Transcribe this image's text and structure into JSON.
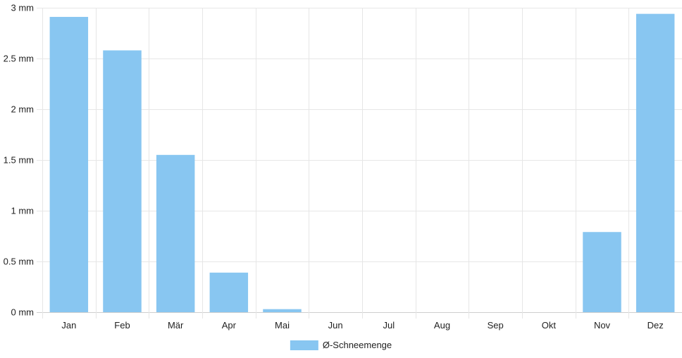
{
  "chart_data": {
    "type": "bar",
    "categories": [
      "Jan",
      "Feb",
      "Mär",
      "Apr",
      "Mai",
      "Jun",
      "Jul",
      "Aug",
      "Sep",
      "Okt",
      "Nov",
      "Dez"
    ],
    "series": [
      {
        "name": "Ø-Schneemenge",
        "values": [
          2.91,
          2.58,
          1.55,
          0.39,
          0.03,
          0,
          0,
          0,
          0,
          0,
          0.79,
          2.94
        ],
        "color": "#88c6f1"
      }
    ],
    "y_ticks": [
      "0 mm",
      "0.5 mm",
      "1 mm",
      "1.5 mm",
      "2 mm",
      "2.5 mm",
      "3 mm"
    ],
    "ylim": [
      0,
      3
    ],
    "grid": true,
    "legend_position": "bottom"
  }
}
